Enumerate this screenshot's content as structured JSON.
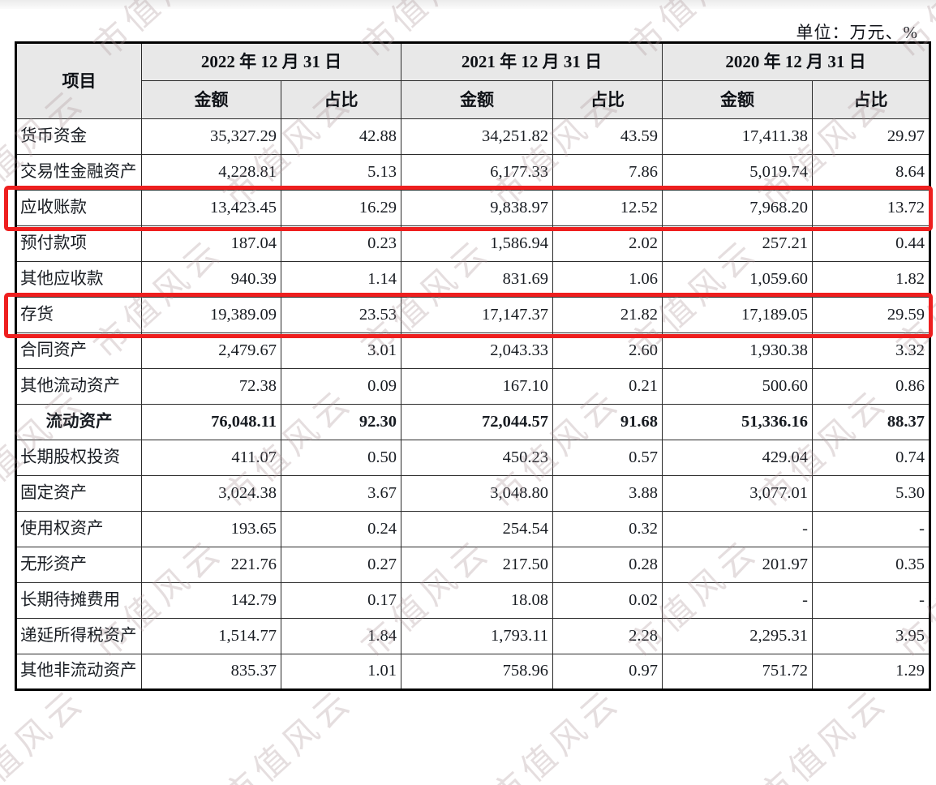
{
  "page": {
    "unit_label": "单位：万元、%",
    "watermark_text": "市值风云",
    "accent_red": "#ee1f1f",
    "header_fill": "#e8e8e8"
  },
  "table": {
    "item_header": "项目",
    "col_groups": [
      {
        "date": "2022 年 12 月 31 日",
        "amount_label": "金额",
        "ratio_label": "占比"
      },
      {
        "date": "2021 年 12 月 31 日",
        "amount_label": "金额",
        "ratio_label": "占比"
      },
      {
        "date": "2020 年 12 月 31 日",
        "amount_label": "金额",
        "ratio_label": "占比"
      }
    ],
    "rows": [
      {
        "item": "货币资金",
        "values": [
          "35,327.29",
          "42.88",
          "34,251.82",
          "43.59",
          "17,411.38",
          "29.97"
        ],
        "bold": false,
        "highlight": false
      },
      {
        "item": "交易性金融资产",
        "values": [
          "4,228.81",
          "5.13",
          "6,177.33",
          "7.86",
          "5,019.74",
          "8.64"
        ],
        "bold": false,
        "highlight": false
      },
      {
        "item": "应收账款",
        "values": [
          "13,423.45",
          "16.29",
          "9,838.97",
          "12.52",
          "7,968.20",
          "13.72"
        ],
        "bold": false,
        "highlight": true
      },
      {
        "item": "预付款项",
        "values": [
          "187.04",
          "0.23",
          "1,586.94",
          "2.02",
          "257.21",
          "0.44"
        ],
        "bold": false,
        "highlight": false
      },
      {
        "item": "其他应收款",
        "values": [
          "940.39",
          "1.14",
          "831.69",
          "1.06",
          "1,059.60",
          "1.82"
        ],
        "bold": false,
        "highlight": false
      },
      {
        "item": "存货",
        "values": [
          "19,389.09",
          "23.53",
          "17,147.37",
          "21.82",
          "17,189.05",
          "29.59"
        ],
        "bold": false,
        "highlight": true
      },
      {
        "item": "合同资产",
        "values": [
          "2,479.67",
          "3.01",
          "2,043.33",
          "2.60",
          "1,930.38",
          "3.32"
        ],
        "bold": false,
        "highlight": false
      },
      {
        "item": "其他流动资产",
        "values": [
          "72.38",
          "0.09",
          "167.10",
          "0.21",
          "500.60",
          "0.86"
        ],
        "bold": false,
        "highlight": false
      },
      {
        "item": "流动资产",
        "values": [
          "76,048.11",
          "92.30",
          "72,044.57",
          "91.68",
          "51,336.16",
          "88.37"
        ],
        "bold": true,
        "highlight": false
      },
      {
        "item": "长期股权投资",
        "values": [
          "411.07",
          "0.50",
          "450.23",
          "0.57",
          "429.04",
          "0.74"
        ],
        "bold": false,
        "highlight": false
      },
      {
        "item": "固定资产",
        "values": [
          "3,024.38",
          "3.67",
          "3,048.80",
          "3.88",
          "3,077.01",
          "5.30"
        ],
        "bold": false,
        "highlight": false
      },
      {
        "item": "使用权资产",
        "values": [
          "193.65",
          "0.24",
          "254.54",
          "0.32",
          "-",
          "-"
        ],
        "bold": false,
        "highlight": false
      },
      {
        "item": "无形资产",
        "values": [
          "221.76",
          "0.27",
          "217.50",
          "0.28",
          "201.97",
          "0.35"
        ],
        "bold": false,
        "highlight": false
      },
      {
        "item": "长期待摊费用",
        "values": [
          "142.79",
          "0.17",
          "18.08",
          "0.02",
          "-",
          "-"
        ],
        "bold": false,
        "highlight": false
      },
      {
        "item": "递延所得税资产",
        "values": [
          "1,514.77",
          "1.84",
          "1,793.11",
          "2.28",
          "2,295.31",
          "3.95"
        ],
        "bold": false,
        "highlight": false
      },
      {
        "item": "其他非流动资产",
        "values": [
          "835.37",
          "1.01",
          "758.96",
          "0.97",
          "751.72",
          "1.29"
        ],
        "bold": false,
        "highlight": false
      }
    ]
  }
}
